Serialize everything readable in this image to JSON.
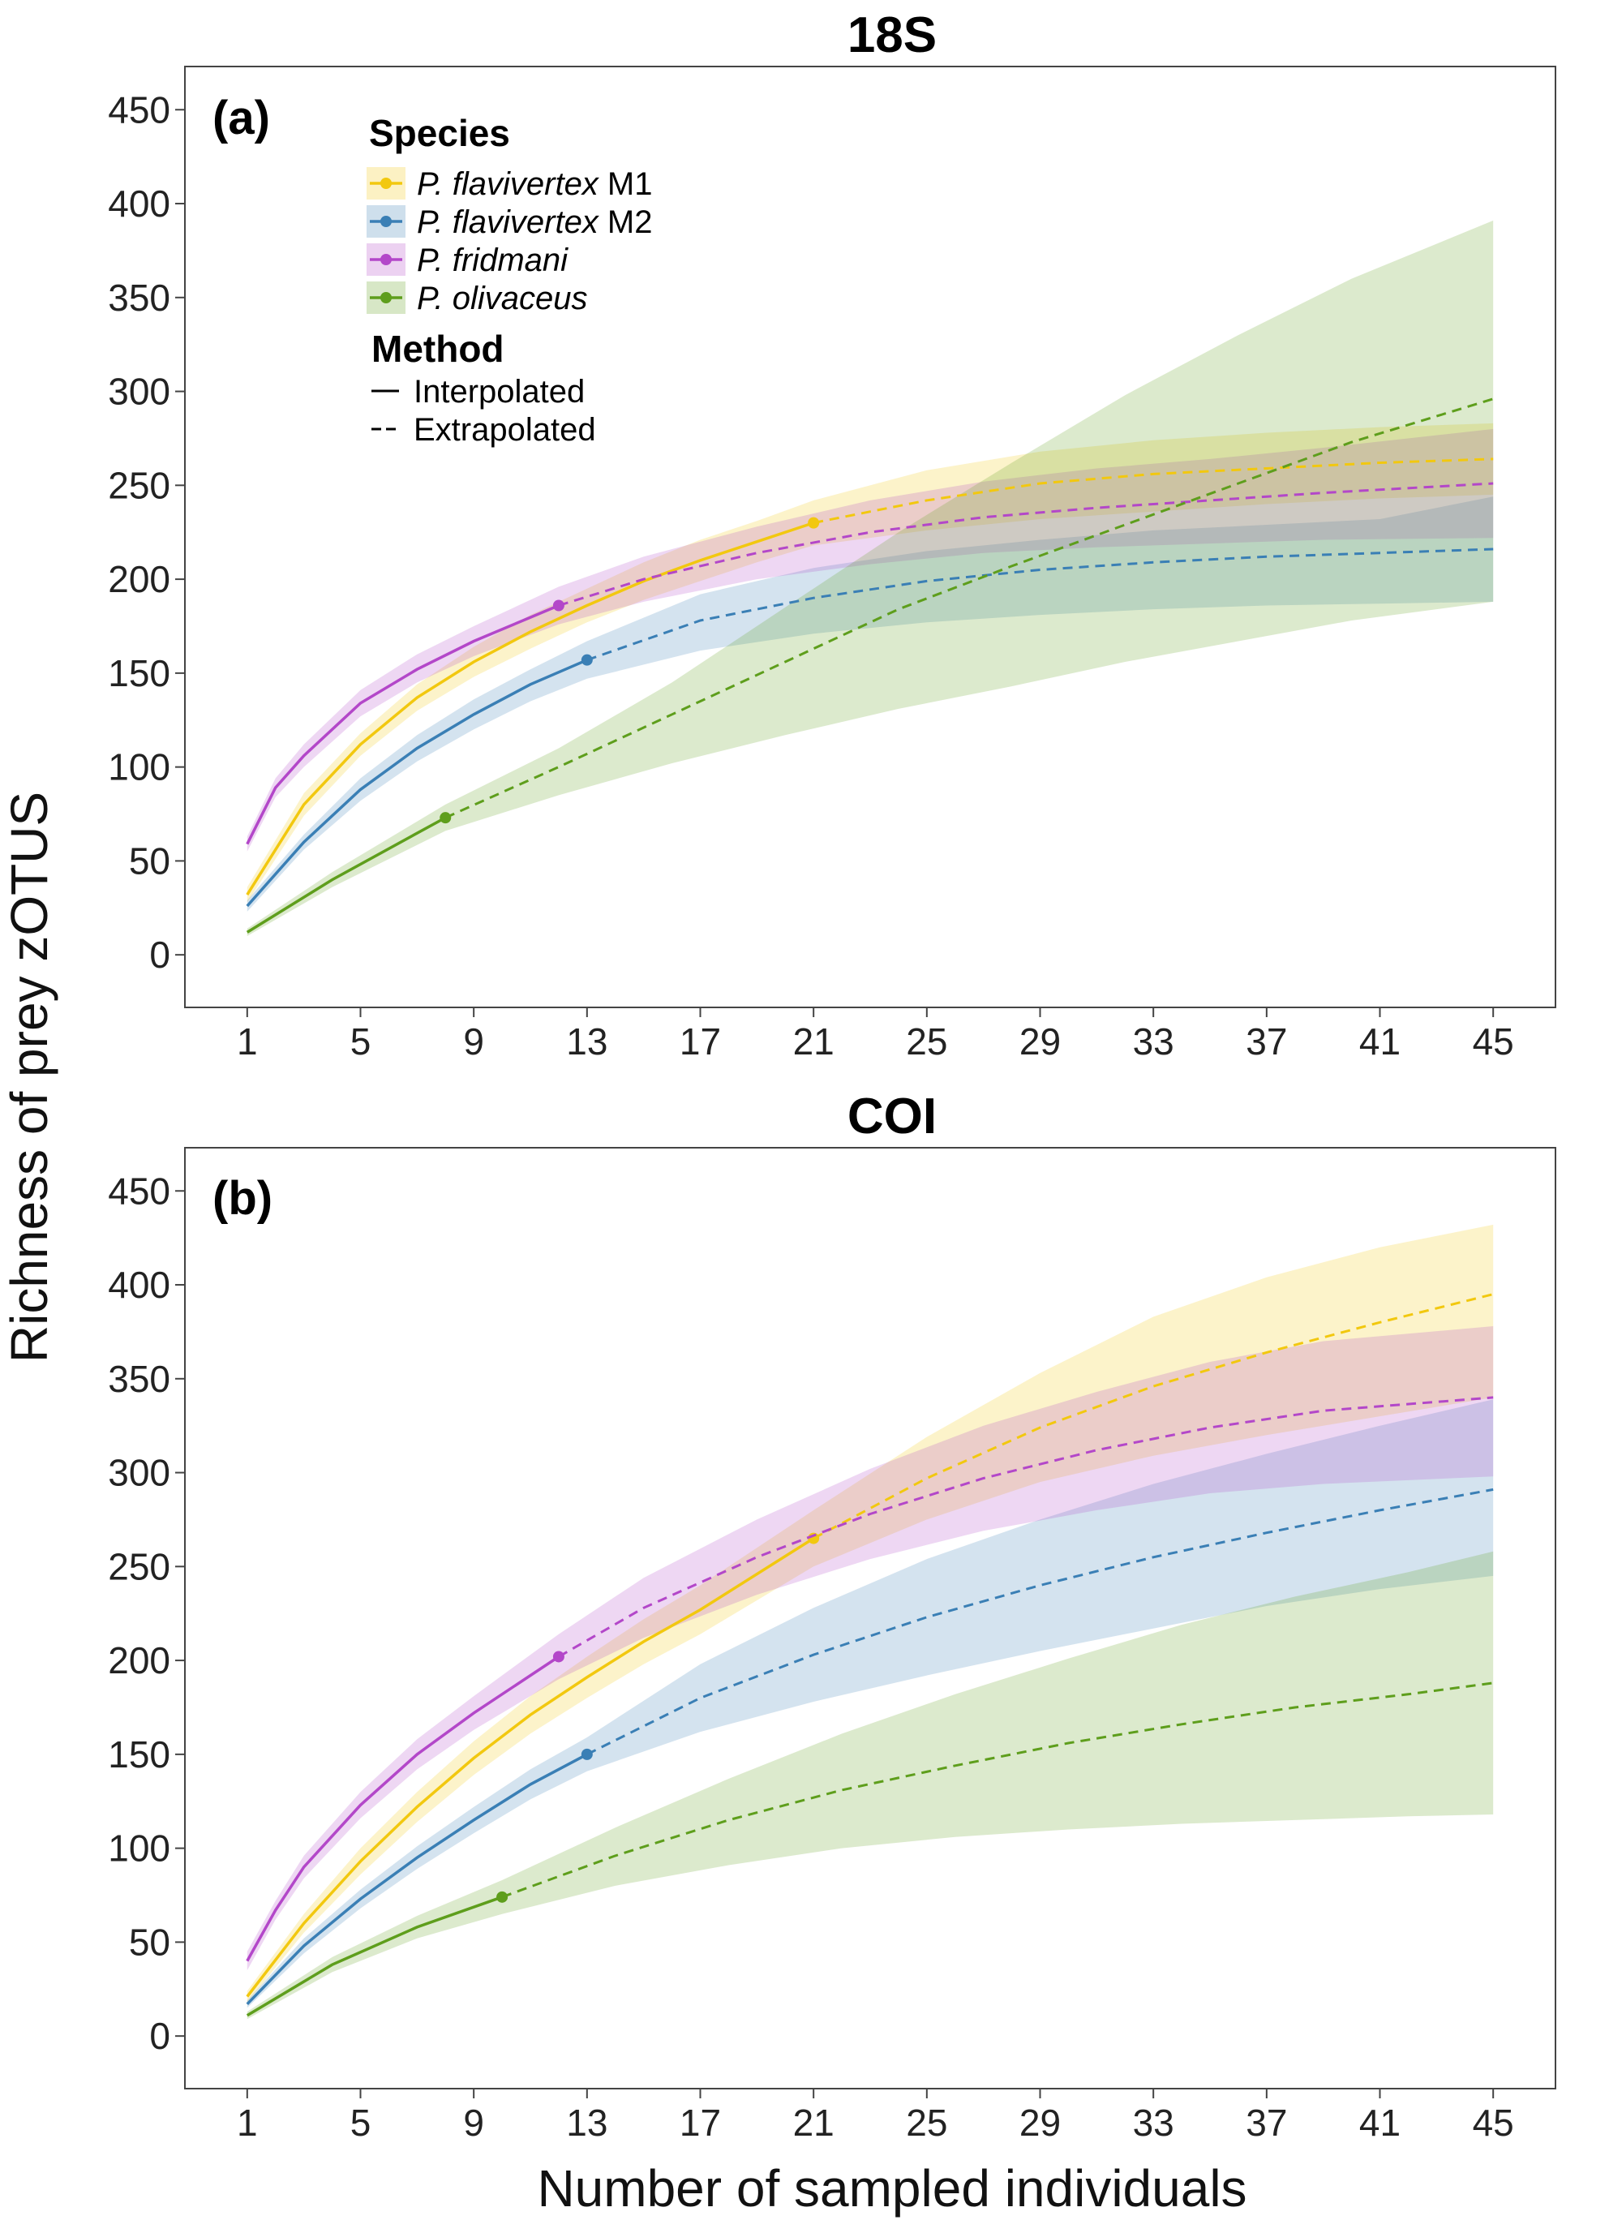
{
  "figure": {
    "ylabel": "Richness of prey zOTUS",
    "xlabel": "Number of sampled individuals"
  },
  "legend": {
    "species_title": "Species",
    "species": [
      {
        "italic": "P. flavivertex",
        "suffix": " M1",
        "color": "#F2C80F"
      },
      {
        "italic": "P. flavivertex",
        "suffix": " M2",
        "color": "#3A7FB5"
      },
      {
        "italic": "P. fridmani",
        "suffix": "",
        "color": "#B347C9"
      },
      {
        "italic": "P. olivaceus",
        "suffix": "",
        "color": "#5E9E1C"
      }
    ],
    "method_title": "Method",
    "methods": [
      "Interpolated",
      "Extrapolated"
    ]
  },
  "chart_data": [
    {
      "type": "line",
      "panel": "(a)",
      "title": "18S",
      "xticks": [
        1,
        5,
        9,
        13,
        17,
        21,
        25,
        29,
        33,
        37,
        41,
        45
      ],
      "yticks": [
        0,
        50,
        100,
        150,
        200,
        250,
        300,
        350,
        400,
        450
      ],
      "xlim": [
        -1.2,
        47.2
      ],
      "ylim": [
        -28,
        473
      ],
      "grid": false,
      "legend_position": "top-left",
      "series": [
        {
          "color": "#F2C80F",
          "observed": [
            21,
            230
          ],
          "x": [
            1,
            3,
            5,
            7,
            9,
            11,
            13,
            15,
            17,
            19,
            21,
            25,
            29,
            33,
            37,
            41,
            45
          ],
          "y": [
            32,
            80,
            112,
            137,
            156,
            172,
            186,
            199,
            210,
            220,
            230,
            242,
            251,
            256,
            259,
            262,
            264
          ],
          "lower": [
            28,
            74,
            106,
            130,
            148,
            163,
            177,
            189,
            199,
            209,
            218,
            226,
            232,
            236,
            240,
            243,
            245
          ],
          "upper": [
            36,
            86,
            118,
            144,
            164,
            181,
            195,
            209,
            221,
            231,
            242,
            258,
            268,
            274,
            278,
            281,
            283
          ]
        },
        {
          "color": "#3A7FB5",
          "observed": [
            13,
            157
          ],
          "x": [
            1,
            3,
            5,
            7,
            9,
            11,
            13,
            17,
            21,
            25,
            29,
            33,
            37,
            41,
            45
          ],
          "y": [
            26,
            60,
            88,
            110,
            128,
            144,
            157,
            178,
            190,
            199,
            205,
            209,
            212,
            214,
            216
          ],
          "lower": [
            23,
            56,
            82,
            103,
            120,
            135,
            147,
            162,
            171,
            177,
            181,
            184,
            186,
            187,
            188
          ],
          "upper": [
            29,
            64,
            94,
            117,
            136,
            152,
            167,
            192,
            206,
            215,
            221,
            226,
            229,
            232,
            244
          ]
        },
        {
          "color": "#B347C9",
          "observed": [
            12,
            186
          ],
          "x": [
            1,
            2,
            3,
            5,
            7,
            9,
            12,
            15,
            19,
            23,
            27,
            31,
            35,
            39,
            45
          ],
          "y": [
            59,
            89,
            106,
            134,
            152,
            167,
            186,
            200,
            214,
            225,
            233,
            238,
            242,
            246,
            251
          ],
          "lower": [
            55,
            84,
            100,
            127,
            145,
            159,
            176,
            188,
            200,
            208,
            214,
            217,
            219,
            221,
            222
          ],
          "upper": [
            63,
            94,
            112,
            141,
            160,
            175,
            196,
            212,
            228,
            242,
            252,
            259,
            264,
            270,
            280
          ]
        },
        {
          "color": "#5E9E1C",
          "observed": [
            8,
            73
          ],
          "x": [
            1,
            4,
            8,
            12,
            16,
            20,
            24,
            28,
            32,
            36,
            40,
            45
          ],
          "y": [
            12,
            40,
            73,
            100,
            128,
            156,
            184,
            207,
            229,
            251,
            273,
            296
          ],
          "lower": [
            10,
            36,
            66,
            85,
            102,
            117,
            131,
            143,
            156,
            167,
            178,
            188
          ],
          "upper": [
            14,
            44,
            80,
            110,
            145,
            185,
            225,
            262,
            298,
            330,
            360,
            391
          ]
        }
      ]
    },
    {
      "type": "line",
      "panel": "(b)",
      "title": "COI",
      "xticks": [
        1,
        5,
        9,
        13,
        17,
        21,
        25,
        29,
        33,
        37,
        41,
        45
      ],
      "yticks": [
        0,
        50,
        100,
        150,
        200,
        250,
        300,
        350,
        400,
        450
      ],
      "xlim": [
        -1.2,
        47.2
      ],
      "ylim": [
        -28,
        473
      ],
      "grid": false,
      "legend_position": "none",
      "series": [
        {
          "color": "#F2C80F",
          "observed": [
            21,
            265
          ],
          "x": [
            1,
            3,
            5,
            7,
            9,
            11,
            13,
            15,
            17,
            21,
            25,
            29,
            33,
            37,
            41,
            45
          ],
          "y": [
            21,
            60,
            93,
            122,
            148,
            171,
            191,
            210,
            227,
            265,
            297,
            324,
            346,
            364,
            380,
            395
          ],
          "lower": [
            18,
            55,
            86,
            114,
            139,
            161,
            180,
            198,
            214,
            250,
            275,
            295,
            309,
            320,
            330,
            340
          ],
          "upper": [
            24,
            65,
            100,
            130,
            157,
            181,
            202,
            222,
            240,
            280,
            319,
            353,
            383,
            404,
            420,
            432
          ]
        },
        {
          "color": "#3A7FB5",
          "observed": [
            13,
            150
          ],
          "x": [
            1,
            3,
            5,
            7,
            9,
            11,
            13,
            17,
            21,
            25,
            29,
            33,
            37,
            41,
            45
          ],
          "y": [
            17,
            48,
            73,
            95,
            115,
            134,
            150,
            180,
            203,
            223,
            240,
            255,
            268,
            280,
            291
          ],
          "lower": [
            15,
            44,
            68,
            89,
            108,
            126,
            141,
            162,
            178,
            192,
            205,
            217,
            229,
            238,
            245
          ],
          "upper": [
            19,
            52,
            78,
            101,
            122,
            142,
            159,
            198,
            228,
            254,
            275,
            294,
            310,
            325,
            339
          ]
        },
        {
          "color": "#B347C9",
          "observed": [
            12,
            202
          ],
          "x": [
            1,
            2,
            3,
            5,
            7,
            9,
            12,
            15,
            19,
            23,
            27,
            31,
            35,
            39,
            45
          ],
          "y": [
            40,
            67,
            90,
            123,
            150,
            172,
            202,
            228,
            255,
            278,
            297,
            312,
            324,
            333,
            340
          ],
          "lower": [
            35,
            62,
            84,
            116,
            142,
            163,
            190,
            212,
            235,
            254,
            269,
            280,
            289,
            294,
            298
          ],
          "upper": [
            45,
            72,
            96,
            130,
            158,
            181,
            214,
            244,
            275,
            302,
            325,
            343,
            359,
            370,
            378
          ]
        },
        {
          "color": "#5E9E1C",
          "observed": [
            10,
            74
          ],
          "x": [
            1,
            4,
            7,
            10,
            14,
            18,
            22,
            26,
            30,
            34,
            38,
            42,
            45
          ],
          "y": [
            11,
            38,
            58,
            74,
            96,
            115,
            131,
            144,
            156,
            166,
            175,
            182,
            188
          ],
          "lower": [
            9,
            34,
            52,
            65,
            80,
            91,
            100,
            106,
            110,
            113,
            115,
            117,
            118
          ],
          "upper": [
            13,
            42,
            64,
            83,
            111,
            137,
            161,
            182,
            201,
            219,
            234,
            247,
            258
          ]
        }
      ]
    }
  ]
}
